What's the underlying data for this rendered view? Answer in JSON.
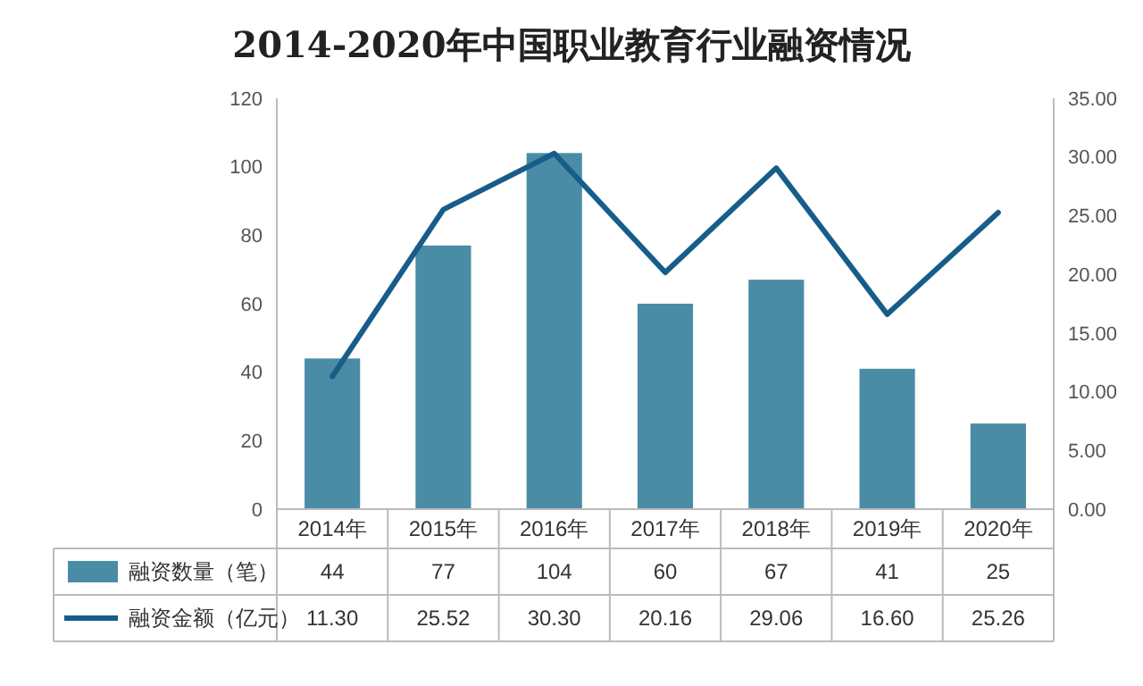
{
  "chart_data": {
    "type": "bar",
    "title": "2014-2020年中国职业教育行业融资情况",
    "categories": [
      "2014年",
      "2015年",
      "2016年",
      "2017年",
      "2018年",
      "2019年",
      "2020年"
    ],
    "series": [
      {
        "name": "融资数量（笔）",
        "color": "#4a8ca6",
        "values": [
          44,
          77,
          104,
          60,
          67,
          41,
          25
        ],
        "value_labels": [
          "44",
          "77",
          "104",
          "60",
          "67",
          "41",
          "25"
        ]
      },
      {
        "name": "融资金额（亿元）",
        "type": "line",
        "axis": "y2",
        "color": "#175d8a",
        "values": [
          11.3,
          25.52,
          30.3,
          20.16,
          29.06,
          16.6,
          25.26
        ],
        "value_labels": [
          "11.30",
          "25.52",
          "30.30",
          "20.16",
          "29.06",
          "16.60",
          "25.26"
        ]
      }
    ],
    "ylim": [
      0,
      120
    ],
    "yticks": [
      0,
      20,
      40,
      60,
      80,
      100,
      120
    ],
    "y2lim": [
      0,
      35
    ],
    "y2ticks": [
      {
        "value": 0,
        "label": "0.00"
      },
      {
        "value": 5,
        "label": "5.00"
      },
      {
        "value": 10,
        "label": "10.00"
      },
      {
        "value": 15,
        "label": "15.00"
      },
      {
        "value": 20,
        "label": "20.00"
      },
      {
        "value": 25,
        "label": "25.00"
      },
      {
        "value": 30,
        "label": "30.00"
      },
      {
        "value": 35,
        "label": "35.00"
      }
    ],
    "legend": "bottom",
    "marker": "none",
    "line_style": "solid",
    "grid": false
  }
}
